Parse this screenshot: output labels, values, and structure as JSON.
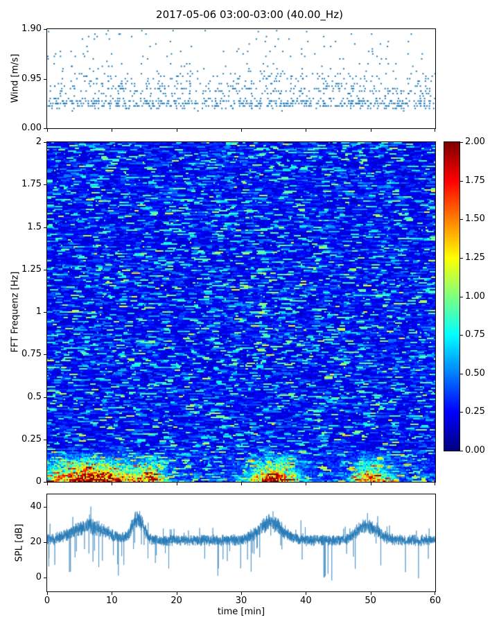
{
  "title": "2017-05-06 03:00-03:00 (40.00_Hz)",
  "chart_data": [
    {
      "id": "wind",
      "type": "scatter",
      "ylabel": "Wind [m/s]",
      "ylim": [
        0,
        1.9
      ],
      "ytick_labels": [
        "1.90",
        "0.95",
        "0.00"
      ],
      "ytick_values": [
        1.9,
        0.95,
        0
      ],
      "xlim": [
        0,
        60
      ],
      "marker_color": "#1f77b4",
      "point_count": 1100,
      "quantize_step": 0.0475,
      "clusters": [
        {
          "weight": 0.5,
          "center": 0.48,
          "spread": 0.14
        },
        {
          "weight": 0.25,
          "center": 0.75,
          "spread": 0.16
        },
        {
          "weight": 0.12,
          "center": 0.95,
          "spread": 0.12
        },
        {
          "weight": 0.09,
          "min": 1.0,
          "max": 1.5
        },
        {
          "weight": 0.04,
          "min": 1.5,
          "max": 1.9
        }
      ]
    },
    {
      "id": "spectrogram",
      "type": "heatmap",
      "ylabel": "FFT Frequenz [Hz]",
      "ylim": [
        0,
        2
      ],
      "ytick_labels": [
        "2",
        "1.75",
        "1.5",
        "1.25",
        "1",
        "0.75",
        "0.5",
        "0.25",
        "0"
      ],
      "ytick_values": [
        2,
        1.75,
        1.5,
        1.25,
        1,
        0.75,
        0.5,
        0.25,
        0
      ],
      "xlim": [
        0,
        60
      ],
      "clim": [
        0,
        2
      ],
      "colormap": "jet",
      "colorbar_tick_labels": [
        "2.00",
        "1.75",
        "1.50",
        "1.25",
        "1.00",
        "0.75",
        "0.50",
        "0.25",
        "0.00"
      ],
      "colorbar_tick_values": [
        2,
        1.75,
        1.5,
        1.25,
        1,
        0.75,
        0.5,
        0.25,
        0
      ],
      "base_level": 0.15,
      "base_spread": 0.45,
      "streak_probability": 0.18,
      "streak_boost": [
        0.25,
        0.55
      ],
      "hot_band_freq_max": 0.18,
      "hotspots": [
        {
          "time": 7,
          "sigma": 5,
          "amp": 1.6
        },
        {
          "time": 16,
          "sigma": 1.5,
          "amp": 1.0
        },
        {
          "time": 35,
          "sigma": 2.5,
          "amp": 1.5
        },
        {
          "time": 50,
          "sigma": 2,
          "amp": 1.1
        }
      ]
    },
    {
      "id": "spl",
      "type": "line",
      "ylabel": "SPL [dB]",
      "xlabel": "time [min]",
      "ylim": [
        -8,
        47
      ],
      "ytick_labels": [
        "40",
        "20",
        "0"
      ],
      "ytick_values": [
        40,
        20,
        0
      ],
      "xlim": [
        0,
        60
      ],
      "xtick_labels": [
        "0",
        "10",
        "20",
        "30",
        "40",
        "50",
        "60"
      ],
      "xtick_values": [
        0,
        10,
        20,
        30,
        40,
        50,
        60
      ],
      "line_color": "#1f77b4",
      "baseline": 21,
      "noise": 3.5,
      "bumps": [
        {
          "time": 6.5,
          "sigma": 2.5,
          "amp": 8
        },
        {
          "time": 14,
          "sigma": 0.9,
          "amp": 12
        },
        {
          "time": 34.5,
          "sigma": 1.8,
          "amp": 10
        },
        {
          "time": 49.5,
          "sigma": 1.6,
          "amp": 8
        }
      ]
    }
  ]
}
